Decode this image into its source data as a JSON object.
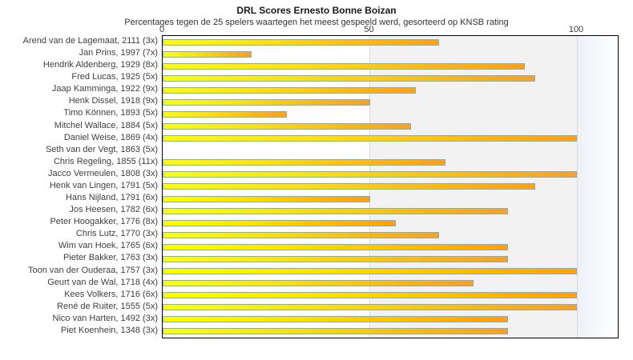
{
  "chart_data": {
    "type": "bar",
    "orientation": "horizontal",
    "title": "DRL Scores Ernesto Bonne Boizan",
    "subtitle": "Percentages tegen de 25 spelers waartegen het meest gespeeld werd, gesorteerd op KNSB rating",
    "xlabel": "",
    "ylabel": "",
    "xlim": [
      0,
      100
    ],
    "x_ticks": [
      0,
      50,
      100
    ],
    "grid": "vertical-light",
    "legend": "none",
    "categories": [
      "Arend van de Lagemaat, 2111 (3x)",
      "Jan Prins, 1997 (7x)",
      "Hendrik Aldenberg, 1929 (8x)",
      "Fred Lucas, 1925 (5x)",
      "Jaap Kamminga, 1922 (9x)",
      "Henk Dissel, 1918 (9x)",
      "Timo Können, 1893 (5x)",
      "Mitchel Wallace, 1884 (5x)",
      "Daniel Weise, 1869 (4x)",
      "Seth van der Vegt, 1863 (5x)",
      "Chris Regeling, 1855 (11x)",
      "Jacco Vermeulen, 1808 (3x)",
      "Henk van Lingen, 1791 (5x)",
      "Hans Nijland, 1791 (6x)",
      "Jos Heesen, 1782 (6x)",
      "Peter Hoogakker, 1776 (8x)",
      "Chris Lutz, 1770 (3x)",
      "Wim van Hoek, 1765 (6x)",
      "Pieter Bakker, 1763 (3x)",
      "Toon van der Ouderaa, 1757 (3x)",
      "Geurt van de Wal, 1718 (4x)",
      "Kees Volkers, 1716 (6x)",
      "René de Ruiter, 1555 (5x)",
      "Nico van Harten, 1492 (3x)",
      "Piet Koenhein, 1348 (3x)"
    ],
    "values": [
      66.7,
      21.4,
      87.5,
      90,
      61.1,
      50,
      30,
      60,
      100,
      0,
      68.2,
      100,
      90,
      50,
      83.3,
      56.3,
      66.7,
      83.3,
      83.3,
      100,
      75,
      100,
      100,
      83.3,
      83.3
    ],
    "colors": {
      "bar_gradient_start": "#ffff00",
      "bar_gradient_end": "#ffa018",
      "bar_border": "#77aede",
      "band_50_100": "#f2f2f2",
      "gridline": "#d9d9d9",
      "plot_border": "#000000"
    }
  }
}
